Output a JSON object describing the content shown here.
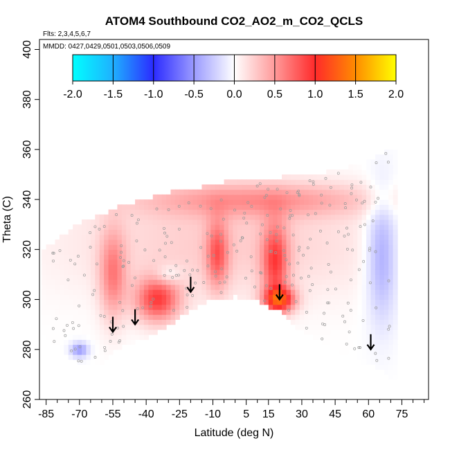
{
  "chart_data": {
    "type": "heatmap",
    "title": "ATOM4 Southbound CO2_AO2_m_CO2_QCLS",
    "flights_label": "Flts: 2,3,4,5,6,7",
    "dates_label": "MMDD: 0427,0429,0501,0503,0506,0509",
    "xlabel": "Latitude (deg N)",
    "ylabel": "Theta (C)",
    "xlim": [
      -88,
      87
    ],
    "ylim": [
      260,
      404
    ],
    "x_ticks": [
      -85,
      -70,
      -55,
      -40,
      -25,
      -10,
      5,
      15,
      30,
      45,
      60,
      75
    ],
    "y_ticks": [
      260,
      280,
      300,
      320,
      340,
      360,
      380,
      400
    ],
    "colorbar": {
      "ticks": [
        "-2.0",
        "-1.5",
        "-1.0",
        "-0.5",
        "0.0",
        "0.5",
        "1.0",
        "1.5",
        "2.0"
      ],
      "range": [
        -2,
        2
      ],
      "colors": [
        "#00ffff",
        "#2a9dff",
        "#2b2bff",
        "#ffffff",
        "#ff2a2a",
        "#ff8c00",
        "#ffff00"
      ]
    },
    "boundary_top": [
      [
        -87,
        318
      ],
      [
        -80,
        323
      ],
      [
        -70,
        330
      ],
      [
        -60,
        333
      ],
      [
        -50,
        337
      ],
      [
        -40,
        339
      ],
      [
        -30,
        342
      ],
      [
        -20,
        343
      ],
      [
        -10,
        345
      ],
      [
        0,
        347
      ],
      [
        10,
        348
      ],
      [
        20,
        348
      ],
      [
        30,
        349
      ],
      [
        40,
        350
      ],
      [
        50,
        352
      ],
      [
        60,
        355
      ],
      [
        68,
        359
      ],
      [
        70,
        359
      ]
    ],
    "boundary_bottom": [
      [
        -87,
        287
      ],
      [
        -80,
        282
      ],
      [
        -72,
        276
      ],
      [
        -65,
        273
      ],
      [
        -60,
        275
      ],
      [
        -55,
        280
      ],
      [
        -50,
        283
      ],
      [
        -40,
        285
      ],
      [
        -30,
        290
      ],
      [
        -20,
        297
      ],
      [
        -10,
        301
      ],
      [
        0,
        302
      ],
      [
        10,
        300
      ],
      [
        15,
        298
      ],
      [
        20,
        296
      ],
      [
        25,
        292
      ],
      [
        30,
        288
      ],
      [
        40,
        283
      ],
      [
        50,
        279
      ],
      [
        55,
        277
      ],
      [
        60,
        275
      ],
      [
        65,
        273
      ],
      [
        68,
        270
      ],
      [
        72,
        269
      ]
    ],
    "regions": [
      {
        "name": "broad-background",
        "lat": -5,
        "theta": 322,
        "rx": 70,
        "ry": 22,
        "value": 0.25
      },
      {
        "name": "upper-band",
        "lat": 10,
        "theta": 340,
        "rx": 55,
        "ry": 7,
        "value": 0.45
      },
      {
        "name": "mid-enhancement",
        "lat": -35,
        "theta": 300,
        "rx": 10,
        "ry": 9,
        "value": 0.85
      },
      {
        "name": "nh-column",
        "lat": 18,
        "theta": 315,
        "rx": 6,
        "ry": 16,
        "value": 0.75
      },
      {
        "name": "nh-lower-max",
        "lat": 20,
        "theta": 300,
        "rx": 7,
        "ry": 5,
        "value": 1.05
      },
      {
        "name": "tropics-column",
        "lat": -8,
        "theta": 318,
        "rx": 5,
        "ry": 14,
        "value": 0.6
      },
      {
        "name": "sh-column",
        "lat": -55,
        "theta": 310,
        "rx": 6,
        "ry": 18,
        "value": 0.55
      },
      {
        "name": "sh-low-pocket",
        "lat": -30,
        "theta": 310,
        "rx": 6,
        "ry": 4,
        "value": -0.25
      },
      {
        "name": "arctic-negative",
        "lat": 66,
        "theta": 318,
        "rx": 7,
        "ry": 26,
        "value": -0.45
      },
      {
        "name": "southern-low",
        "lat": -70,
        "theta": 280,
        "rx": 4,
        "ry": 3,
        "value": -0.5
      }
    ],
    "arrows": [
      {
        "lat": -55,
        "theta": 287
      },
      {
        "lat": -45,
        "theta": 290
      },
      {
        "lat": -20,
        "theta": 303
      },
      {
        "lat": 20,
        "theta": 300
      },
      {
        "lat": 61,
        "theta": 280
      }
    ]
  }
}
